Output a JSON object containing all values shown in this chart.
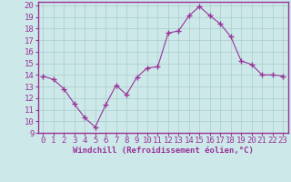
{
  "x": [
    0,
    1,
    2,
    3,
    4,
    5,
    6,
    7,
    8,
    9,
    10,
    11,
    12,
    13,
    14,
    15,
    16,
    17,
    18,
    19,
    20,
    21,
    22,
    23
  ],
  "y": [
    13.9,
    13.6,
    12.8,
    11.5,
    10.3,
    9.5,
    11.4,
    13.1,
    12.3,
    13.8,
    14.6,
    14.7,
    17.6,
    17.8,
    19.1,
    19.9,
    19.1,
    18.4,
    17.3,
    15.2,
    14.9,
    14.0,
    14.0,
    13.9
  ],
  "line_color": "#993399",
  "marker": "+",
  "marker_size": 4,
  "bg_color": "#cce8e8",
  "grid_color": "#aacccc",
  "xlabel": "Windchill (Refroidissement éolien,°C)",
  "xlabel_color": "#993399",
  "ylabel_ticks": [
    9,
    10,
    11,
    12,
    13,
    14,
    15,
    16,
    17,
    18,
    19,
    20
  ],
  "xlim": [
    -0.5,
    23.5
  ],
  "ylim": [
    9,
    20.3
  ],
  "xticks": [
    0,
    1,
    2,
    3,
    4,
    5,
    6,
    7,
    8,
    9,
    10,
    11,
    12,
    13,
    14,
    15,
    16,
    17,
    18,
    19,
    20,
    21,
    22,
    23
  ],
  "tick_color": "#993399",
  "spine_color": "#993399",
  "font_size": 6.5
}
